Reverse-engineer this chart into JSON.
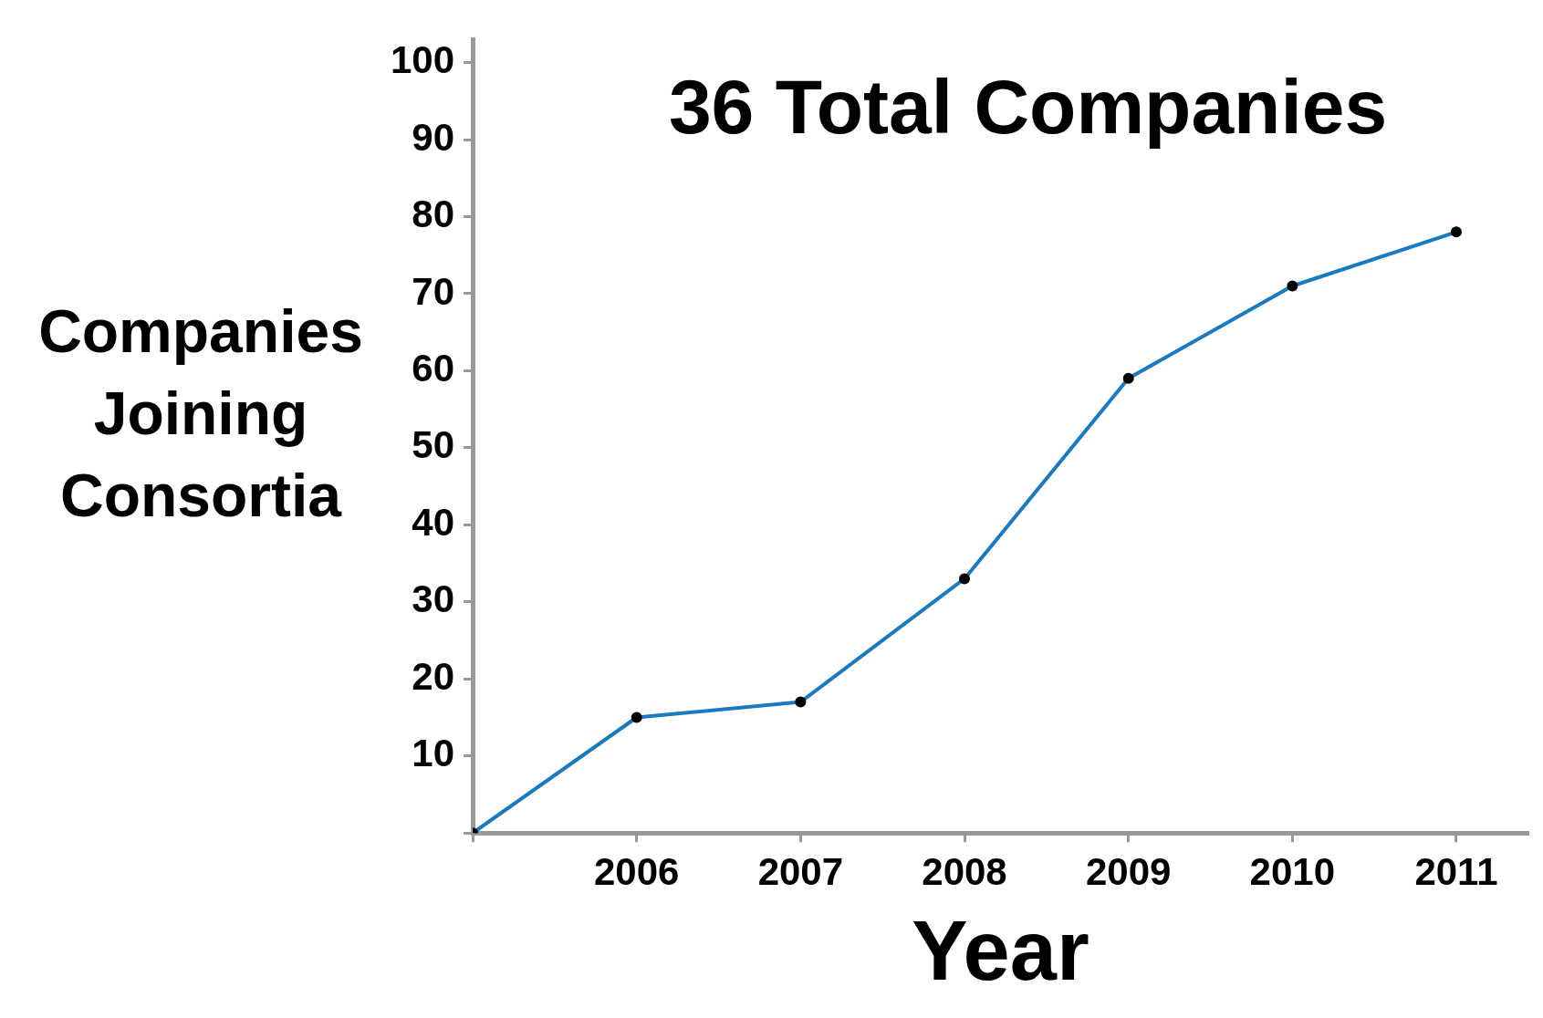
{
  "chart_data": {
    "type": "line",
    "title": "36 Total Companies",
    "xlabel": "Year",
    "ylabel": "Companies Joining Consortia",
    "x": [
      2005,
      2006,
      2007,
      2008,
      2009,
      2010,
      2011
    ],
    "series": [
      {
        "color": "#1a7abf",
        "values": [
          0,
          15,
          17,
          33,
          59,
          71,
          78
        ]
      }
    ],
    "xlim": [
      2005,
      2011.44
    ],
    "xticks": [
      {
        "value": 2005,
        "label": null
      },
      2006,
      2007,
      2008,
      2009,
      2010,
      2011
    ],
    "ylim": [
      0,
      103
    ],
    "yticks": [
      {
        "value": 0,
        "label": null
      },
      10,
      20,
      30,
      40,
      50,
      60,
      70,
      80,
      90,
      100
    ],
    "grid": false,
    "legend": false,
    "marker": "circle",
    "line_style": "solid"
  }
}
